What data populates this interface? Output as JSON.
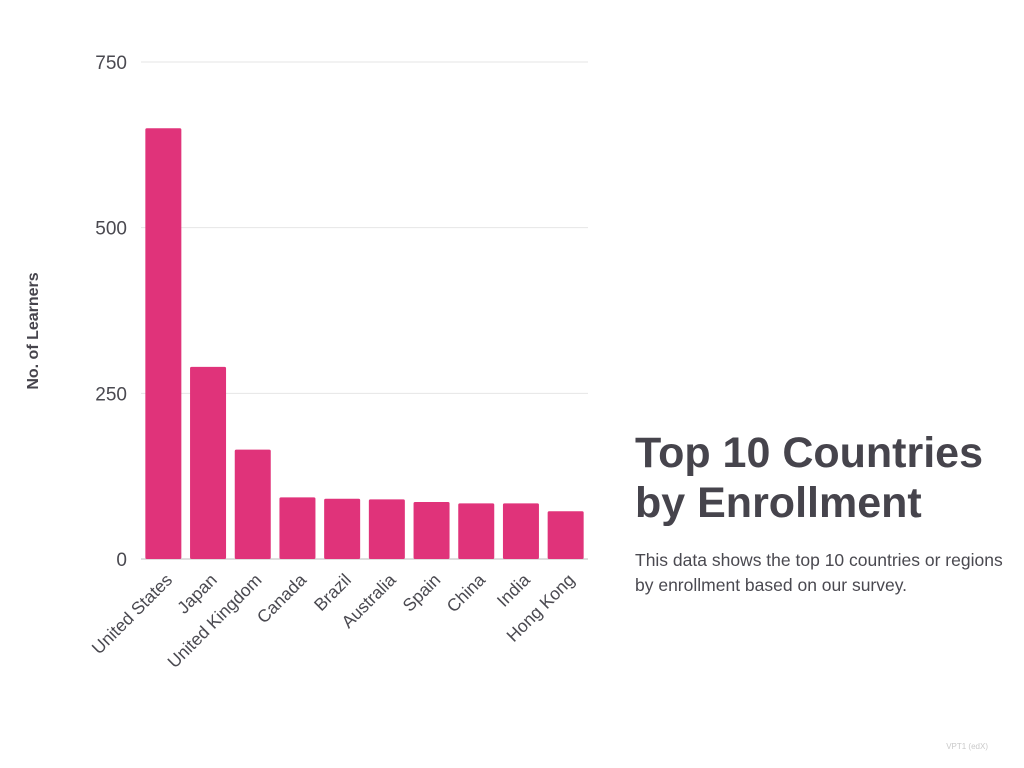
{
  "panel": {
    "title_line1": "Top 10 Countries",
    "title_line2": "by Enrollment",
    "description": "This data shows the top 10 countries or regions by enrollment based on our survey."
  },
  "footer": {
    "mark": "VPT1 (edX)"
  },
  "colors": {
    "bar": "#e0337a",
    "grid": "#e6e6e6",
    "text": "#46444c"
  },
  "chart_data": {
    "type": "bar",
    "title": "",
    "xlabel": "",
    "ylabel": "No. of Learners",
    "ylim": [
      0,
      750
    ],
    "yticks": [
      0,
      250,
      500,
      750
    ],
    "grid": true,
    "categories": [
      "United States",
      "Japan",
      "United Kingdom",
      "Canada",
      "Brazil",
      "Australia",
      "Spain",
      "China",
      "India",
      "Hong Kong"
    ],
    "values": [
      650,
      290,
      165,
      93,
      91,
      90,
      86,
      84,
      84,
      72
    ]
  }
}
